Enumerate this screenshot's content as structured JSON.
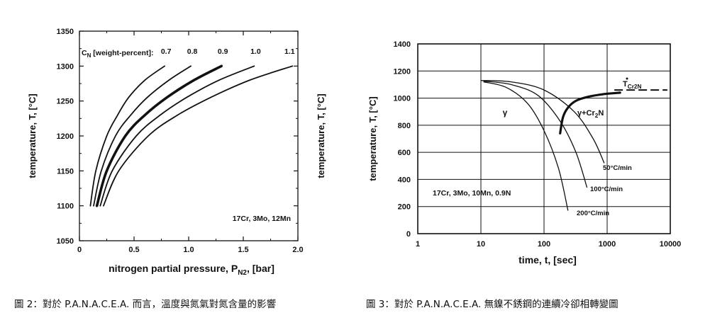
{
  "chart_data": [
    {
      "type": "line",
      "xlabel": "nitrogen partial pressure, P",
      "xlabel_sub": "N2",
      "xlabel_unit": ", [bar]",
      "ylabel": "temperature, T, [°C]",
      "xlim": [
        0,
        2.0
      ],
      "ylim": [
        1050,
        1350
      ],
      "x_ticks": [
        "0",
        "0.5",
        "1.0",
        "1.5",
        "2.0"
      ],
      "y_ticks": [
        "1050",
        "1100",
        "1150",
        "1200",
        "1250",
        "1300",
        "1350"
      ],
      "grid": false,
      "legend_prefix": "C",
      "legend_prefix_sub": "N",
      "legend_text": " [weight-percent]:",
      "annotation": "17Cr, 3Mo, 12Mn",
      "series": [
        {
          "name": "0.7",
          "bold": false,
          "x": [
            0.1,
            0.15,
            0.25,
            0.35,
            0.45,
            0.6,
            0.78
          ],
          "y": [
            1100,
            1150,
            1200,
            1230,
            1255,
            1280,
            1300
          ]
        },
        {
          "name": "0.8",
          "bold": false,
          "x": [
            0.13,
            0.2,
            0.33,
            0.47,
            0.62,
            0.82,
            1.02
          ],
          "y": [
            1100,
            1150,
            1200,
            1230,
            1255,
            1280,
            1300
          ]
        },
        {
          "name": "0.9",
          "bold": true,
          "x": [
            0.16,
            0.25,
            0.42,
            0.6,
            0.8,
            1.05,
            1.3
          ],
          "y": [
            1100,
            1150,
            1200,
            1230,
            1255,
            1280,
            1300
          ]
        },
        {
          "name": "1.0",
          "bold": false,
          "x": [
            0.19,
            0.3,
            0.52,
            0.74,
            0.98,
            1.28,
            1.6
          ],
          "y": [
            1100,
            1150,
            1200,
            1230,
            1255,
            1280,
            1300
          ]
        },
        {
          "name": "1.1",
          "bold": false,
          "x": [
            0.22,
            0.36,
            0.63,
            0.9,
            1.2,
            1.56,
            1.95
          ],
          "y": [
            1100,
            1150,
            1200,
            1230,
            1255,
            1280,
            1300
          ]
        }
      ]
    },
    {
      "type": "line",
      "xlabel": "time, t, [sec]",
      "ylabel": "temperature, T, [°C]",
      "xscale": "log",
      "xlim": [
        1,
        10000
      ],
      "ylim": [
        0,
        1400
      ],
      "x_ticks": [
        "1",
        "10",
        "100",
        "1000",
        "10000"
      ],
      "y_ticks": [
        "0",
        "200",
        "400",
        "600",
        "800",
        "1000",
        "1200",
        "1400"
      ],
      "grid": true,
      "annotation": "17Cr, 3Mo, 10Mn, 0.9N",
      "phase_labels": {
        "gamma": "γ",
        "gamma_cr2n_prefix": "γ+Cr",
        "gamma_cr2n_sub": "2",
        "gamma_cr2n_suffix": "N"
      },
      "solvus_label": {
        "main": "T",
        "sub": "Cr2N"
      },
      "solvus": {
        "x": [
          1300,
          9000
        ],
        "y": [
          1060,
          1060
        ]
      },
      "precipitation_boundary": {
        "x": [
          180,
          200,
          240,
          320,
          500,
          900,
          1600
        ],
        "y": [
          740,
          860,
          930,
          980,
          1010,
          1030,
          1040
        ]
      },
      "cooling_curves": [
        {
          "name": "50°C/min",
          "x": [
            10,
            30,
            100,
            300,
            600,
            900
          ],
          "y": [
            1130,
            1120,
            1060,
            900,
            700,
            520
          ]
        },
        {
          "name": "100°C/min",
          "x": [
            11,
            30,
            80,
            180,
            320,
            480
          ],
          "y": [
            1125,
            1100,
            1020,
            830,
            600,
            340
          ]
        },
        {
          "name": "200°C/min",
          "x": [
            11,
            25,
            55,
            100,
            170,
            240
          ],
          "y": [
            1120,
            1080,
            960,
            760,
            480,
            170
          ]
        }
      ]
    }
  ],
  "captions": {
    "fig2": "圖 2：對於 P.A.N.A.C.E.A. 而言，溫度與氮氣對氮含量的影響",
    "fig3": "圖 3：對於 P.A.N.A.C.E.A. 無鎳不銹鋼的連續冷卻相轉變圖"
  }
}
